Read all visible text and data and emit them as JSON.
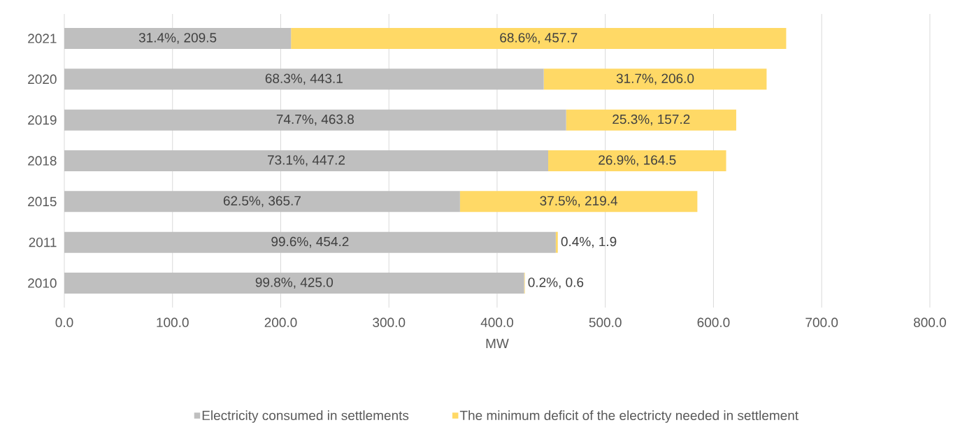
{
  "chart_data": {
    "type": "bar",
    "orientation": "horizontal",
    "stacked": true,
    "categories": [
      "2021",
      "2020",
      "2019",
      "2018",
      "2015",
      "2011",
      "2010"
    ],
    "series": [
      {
        "name": "Electricity consumed in settlements",
        "color": "#bfbfbf",
        "values": [
          209.5,
          443.1,
          463.8,
          447.2,
          365.7,
          454.2,
          425.0
        ],
        "value_labels": [
          "31.4%, 209.5",
          "68.3%, 443.1",
          "74.7%, 463.8",
          "73.1%, 447.2",
          "62.5%, 365.7",
          "99.6%, 454.2",
          "99.8%, 425.0"
        ]
      },
      {
        "name": "The minimum deficit of the electricty needed in settlement",
        "color": "#ffd966",
        "values": [
          457.7,
          206.0,
          157.2,
          164.5,
          219.4,
          1.9,
          0.6
        ],
        "value_labels": [
          "68.6%, 457.7",
          "31.7%, 206.0",
          "25.3%, 157.2",
          "26.9%, 164.5",
          "37.5%, 219.4",
          "0.4%, 1.9",
          "0.2%, 0.6"
        ]
      }
    ],
    "xlim": [
      0,
      800
    ],
    "xticks": [
      {
        "value": 0,
        "label": "0.0"
      },
      {
        "value": 100,
        "label": "100.0"
      },
      {
        "value": 200,
        "label": "200.0"
      },
      {
        "value": 300,
        "label": "300.0"
      },
      {
        "value": 400,
        "label": "400.0"
      },
      {
        "value": 500,
        "label": "500.0"
      },
      {
        "value": 600,
        "label": "600.0"
      },
      {
        "value": 700,
        "label": "700.0"
      },
      {
        "value": 800,
        "label": "800.0"
      }
    ],
    "xlabel": "MW",
    "grid": "x",
    "legend": "bottom"
  }
}
